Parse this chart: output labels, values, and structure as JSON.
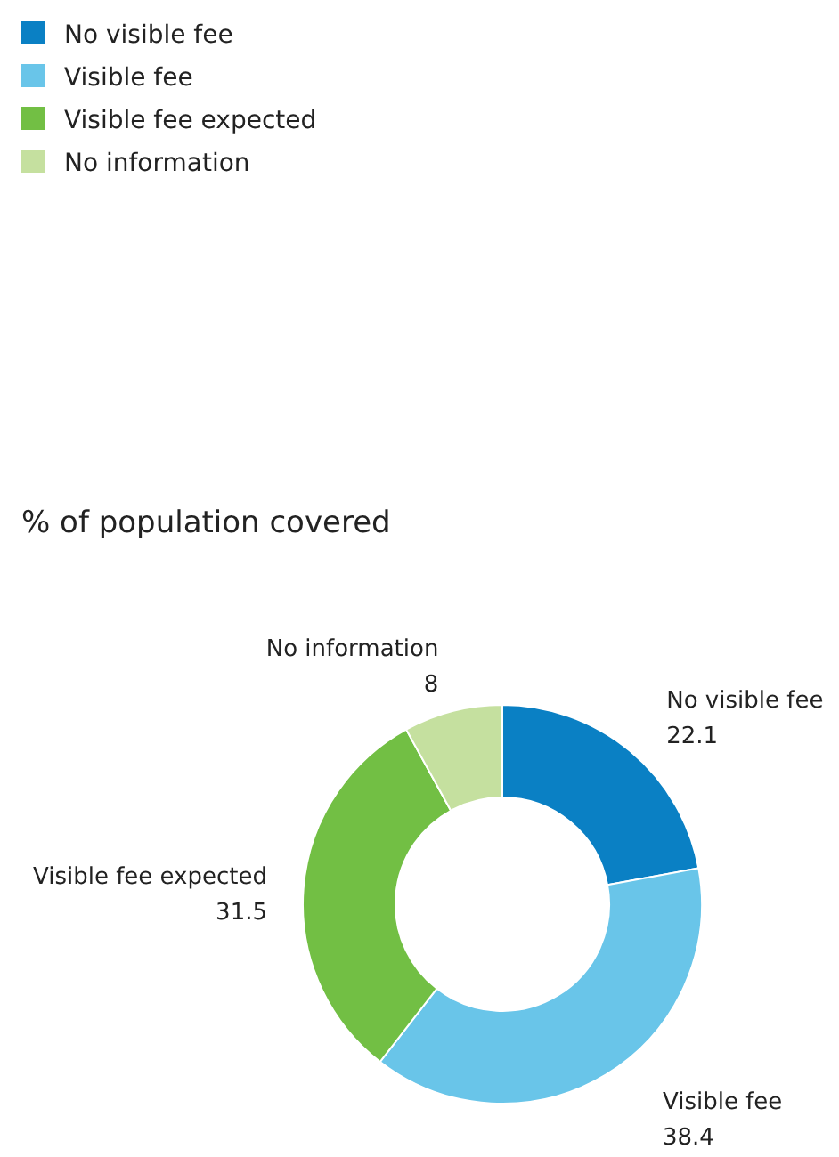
{
  "chart_data": {
    "type": "donut",
    "title": "% of population covered",
    "categories": [
      "No visible fee",
      "Visible fee",
      "Visible fee expected",
      "No information"
    ],
    "values": [
      22.1,
      38.4,
      31.5,
      8
    ],
    "colors": [
      "#0a80c4",
      "#69c5e9",
      "#72bf44",
      "#c5e09f"
    ],
    "data_labels": true,
    "legend": "top left"
  }
}
